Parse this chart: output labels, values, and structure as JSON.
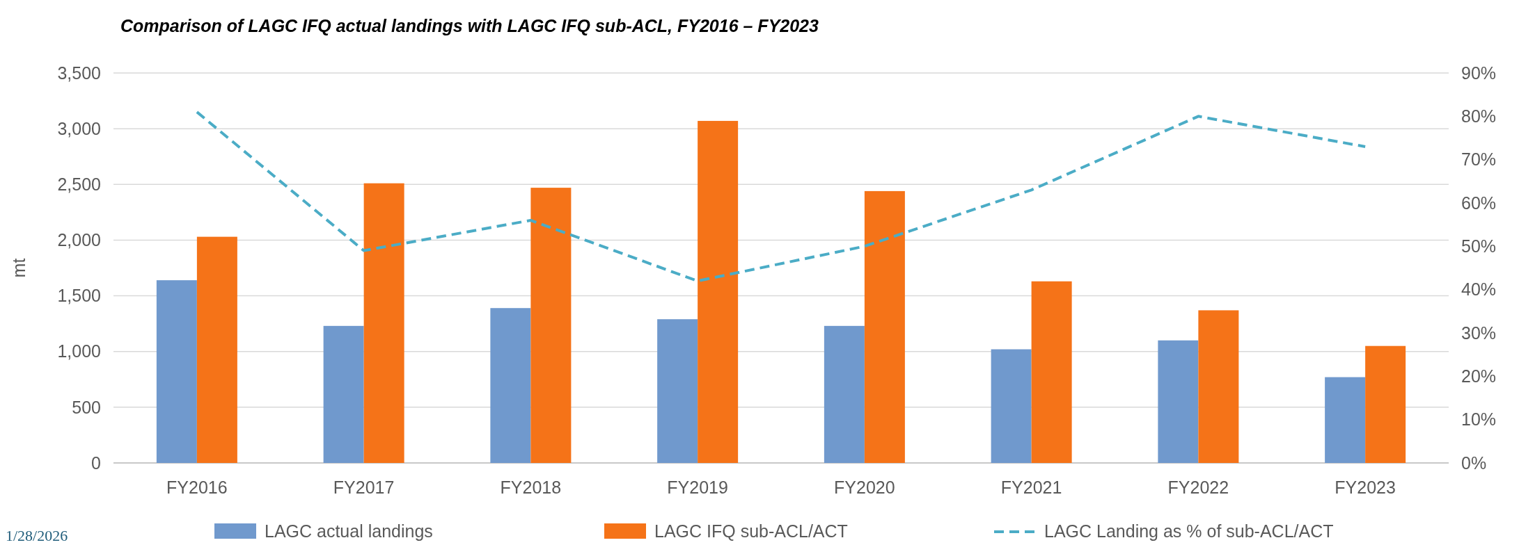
{
  "chart_data": {
    "type": "bar",
    "title": "Comparison of LAGC IFQ actual landings with LAGC IFQ sub-ACL, FY2016 – FY2023",
    "ylabel": "mt",
    "categories": [
      "FY2016",
      "FY2017",
      "FY2018",
      "FY2019",
      "FY2020",
      "FY2021",
      "FY2022",
      "FY2023"
    ],
    "series": [
      {
        "name": "LAGC actual landings",
        "color": "#7099cd",
        "values": [
          1640,
          1230,
          1390,
          1290,
          1230,
          1020,
          1100,
          770
        ]
      },
      {
        "name": "LAGC IFQ sub-ACL/ACT",
        "color": "#f57318",
        "values": [
          2030,
          2510,
          2470,
          3070,
          2440,
          1630,
          1370,
          1050
        ]
      },
      {
        "name": "LAGC Landing as % of sub-ACL/ACT",
        "type": "line",
        "axis": "y2",
        "color": "#4bacc6",
        "line_style": "dashed",
        "values": [
          81,
          49,
          56,
          42,
          50,
          63,
          80,
          73
        ]
      }
    ],
    "ylim": [
      0,
      3500
    ],
    "yticks": [
      {
        "value": 0,
        "label": "0"
      },
      {
        "value": 500,
        "label": "500"
      },
      {
        "value": 1000,
        "label": "1,000"
      },
      {
        "value": 1500,
        "label": "1,500"
      },
      {
        "value": 2000,
        "label": "2,000"
      },
      {
        "value": 2500,
        "label": "2,500"
      },
      {
        "value": 3000,
        "label": "3,000"
      },
      {
        "value": 3500,
        "label": "3,500"
      }
    ],
    "y2lim": [
      0,
      90
    ],
    "y2ticks": [
      {
        "value": 0,
        "label": "0%"
      },
      {
        "value": 10,
        "label": "10%"
      },
      {
        "value": 20,
        "label": "20%"
      },
      {
        "value": 30,
        "label": "30%"
      },
      {
        "value": 40,
        "label": "40%"
      },
      {
        "value": 50,
        "label": "50%"
      },
      {
        "value": 60,
        "label": "60%"
      },
      {
        "value": 70,
        "label": "70%"
      },
      {
        "value": 80,
        "label": "80%"
      },
      {
        "value": 90,
        "label": "90%"
      }
    ],
    "grid": "y",
    "legend": "bottom",
    "annotations": [
      "1/28/2026"
    ]
  }
}
